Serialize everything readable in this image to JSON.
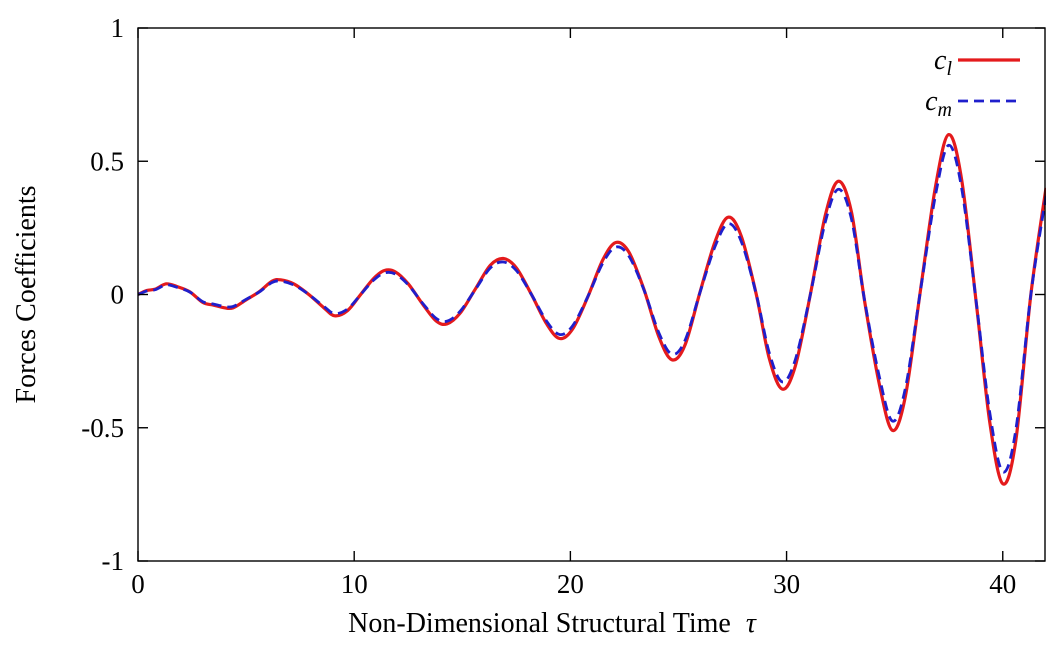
{
  "chart_data": {
    "type": "line",
    "title": "",
    "xlabel": "Non-Dimensional Structural Time",
    "xlabel_symbol": "τ",
    "ylabel": "Forces Coefficients",
    "xlim": [
      0,
      42
    ],
    "ylim": [
      -1,
      1
    ],
    "xticks": [
      "0",
      "10",
      "20",
      "30",
      "40"
    ],
    "yticks": [
      "-1",
      "-0.5",
      "0",
      "0.5",
      "1"
    ],
    "grid": false,
    "legend_position": "top-right",
    "series": [
      {
        "name_base": "c",
        "name_sub": "l",
        "color": "#e41a1c",
        "style": "solid",
        "x": [
          0,
          0.4,
          0.8,
          1.3,
          1.8,
          2.4,
          3.0,
          3.5,
          4.0,
          4.4,
          5.0,
          5.6,
          6.2,
          6.6,
          7.2,
          7.9,
          8.6,
          9.1,
          9.7,
          10.3,
          10.9,
          11.4,
          11.9,
          12.5,
          13.2,
          13.8,
          14.3,
          14.9,
          15.6,
          16.3,
          16.9,
          17.5,
          18.2,
          18.9,
          19.5,
          20.1,
          20.8,
          21.5,
          22.1,
          22.7,
          23.4,
          24.1,
          24.7,
          25.3,
          26.0,
          26.7,
          27.3,
          27.9,
          28.6,
          29.2,
          29.8,
          30.4,
          31.1,
          31.8,
          32.4,
          33.0,
          33.6,
          34.3,
          34.9,
          35.5,
          36.2,
          36.9,
          37.5,
          38.1,
          38.8,
          39.4,
          40.0,
          40.6,
          41.3,
          42.0
        ],
        "y": [
          0.0,
          0.015,
          0.02,
          0.04,
          0.03,
          0.01,
          -0.03,
          -0.04,
          -0.05,
          -0.05,
          -0.02,
          0.01,
          0.05,
          0.055,
          0.04,
          0.0,
          -0.05,
          -0.08,
          -0.06,
          0.0,
          0.06,
          0.09,
          0.085,
          0.04,
          -0.04,
          -0.1,
          -0.11,
          -0.07,
          0.02,
          0.11,
          0.135,
          0.1,
          0.0,
          -0.11,
          -0.165,
          -0.13,
          -0.01,
          0.13,
          0.195,
          0.16,
          0.02,
          -0.16,
          -0.245,
          -0.19,
          0.01,
          0.2,
          0.29,
          0.22,
          0.0,
          -0.24,
          -0.355,
          -0.27,
          0.0,
          0.3,
          0.425,
          0.31,
          -0.02,
          -0.34,
          -0.51,
          -0.38,
          0.02,
          0.41,
          0.6,
          0.43,
          -0.05,
          -0.48,
          -0.71,
          -0.55,
          0.0,
          0.4
        ]
      },
      {
        "name_base": "c",
        "name_sub": "m",
        "color": "#1f1fcc",
        "style": "dashed",
        "x": [
          0,
          0.4,
          0.8,
          1.3,
          1.8,
          2.4,
          3.0,
          3.5,
          4.0,
          4.4,
          5.0,
          5.6,
          6.2,
          6.6,
          7.2,
          7.9,
          8.6,
          9.1,
          9.7,
          10.3,
          10.9,
          11.4,
          11.9,
          12.5,
          13.2,
          13.8,
          14.3,
          14.9,
          15.6,
          16.3,
          16.9,
          17.5,
          18.2,
          18.9,
          19.5,
          20.1,
          20.8,
          21.5,
          22.1,
          22.7,
          23.4,
          24.1,
          24.7,
          25.3,
          26.0,
          26.7,
          27.3,
          27.9,
          28.6,
          29.2,
          29.8,
          30.4,
          31.1,
          31.8,
          32.4,
          33.0,
          33.6,
          34.3,
          34.9,
          35.5,
          36.2,
          36.9,
          37.5,
          38.1,
          38.8,
          39.4,
          40.0,
          40.6,
          41.3,
          42.0
        ],
        "y": [
          0.0,
          0.013,
          0.018,
          0.036,
          0.027,
          0.009,
          -0.027,
          -0.036,
          -0.045,
          -0.045,
          -0.018,
          0.009,
          0.045,
          0.05,
          0.036,
          0.0,
          -0.045,
          -0.072,
          -0.054,
          0.0,
          0.054,
          0.081,
          0.077,
          0.036,
          -0.036,
          -0.09,
          -0.1,
          -0.063,
          0.018,
          0.1,
          0.122,
          0.09,
          0.0,
          -0.1,
          -0.15,
          -0.118,
          -0.009,
          0.118,
          0.178,
          0.145,
          0.018,
          -0.145,
          -0.224,
          -0.173,
          0.009,
          0.182,
          0.266,
          0.2,
          0.0,
          -0.219,
          -0.328,
          -0.246,
          0.0,
          0.275,
          0.395,
          0.284,
          -0.018,
          -0.312,
          -0.475,
          -0.35,
          0.018,
          0.378,
          0.56,
          0.398,
          -0.046,
          -0.444,
          -0.665,
          -0.51,
          0.0,
          0.37
        ]
      }
    ]
  }
}
